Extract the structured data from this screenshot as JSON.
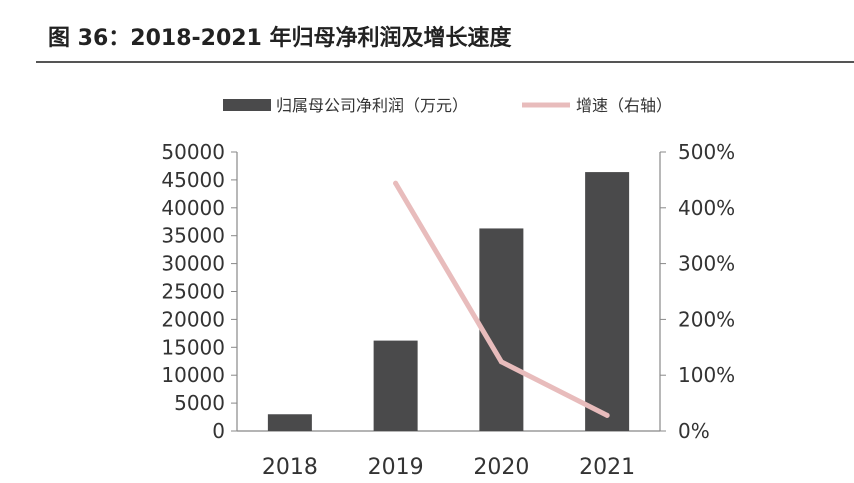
{
  "header": {
    "title": "图 36：2018-2021 年归母净利润及增长速度"
  },
  "chart_data": {
    "type": "bar",
    "categories": [
      "2018",
      "2019",
      "2020",
      "2021"
    ],
    "series": [
      {
        "name": "归属母公司净利润（万元）",
        "type": "bar",
        "axis": "left",
        "values": [
          3000,
          16200,
          36300,
          46400
        ],
        "color": "#4a4a4b"
      },
      {
        "name": "增速（右轴）",
        "type": "line",
        "axis": "right",
        "values": [
          null,
          444,
          124,
          28
        ],
        "color": "#e8bcbc"
      }
    ],
    "ylim_left": [
      0,
      50000
    ],
    "yticks_left": [
      0,
      5000,
      10000,
      15000,
      20000,
      25000,
      30000,
      35000,
      40000,
      45000,
      50000
    ],
    "yticklabels_left": [
      "0",
      "5000",
      "10000",
      "15000",
      "20000",
      "25000",
      "30000",
      "35000",
      "40000",
      "45000",
      "50000"
    ],
    "ylim_right": [
      0,
      500
    ],
    "yticks_right": [
      0,
      100,
      200,
      300,
      400,
      500
    ],
    "yticklabels_right": [
      "0%",
      "100%",
      "200%",
      "300%",
      "400%",
      "500%"
    ],
    "legend": "top",
    "grid": false
  }
}
